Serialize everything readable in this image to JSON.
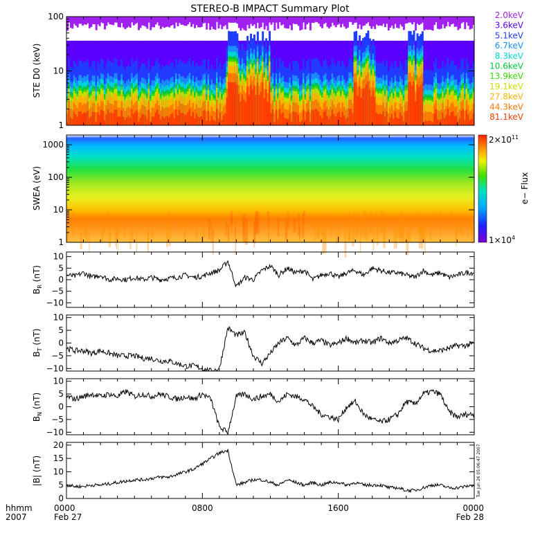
{
  "title": "STEREO-B IMPACT Summary Plot",
  "side_stamp": "Tue Jun 26 05:06:47 2007",
  "x_axis": {
    "row1_label": "hhmm",
    "row2_label": "2007",
    "ticks": [
      {
        "hours": 0,
        "time": "0000",
        "date": "Feb 27"
      },
      {
        "hours": 8,
        "time": "0800",
        "date": ""
      },
      {
        "hours": 16,
        "time": "1600",
        "date": ""
      },
      {
        "hours": 24,
        "time": "0000",
        "date": "Feb 28"
      }
    ],
    "range_hours": [
      0,
      24
    ]
  },
  "colorbar": {
    "label": "e− Flux",
    "max_label_mantissa": "2×10",
    "max_label_exp": "11",
    "min_label_mantissa": "1×10",
    "min_label_exp": "4"
  },
  "chart_data": [
    {
      "type": "area",
      "name": "ste",
      "ylabel": "STE D0 (keV)",
      "yscale": "log",
      "ylim": [
        1,
        100
      ],
      "yticks": [
        {
          "v": 1,
          "label": "1"
        },
        {
          "v": 10,
          "label": "10"
        },
        {
          "v": 100,
          "label": "100"
        }
      ],
      "legend_placement": "right",
      "channels": [
        {
          "name": "2.0keV",
          "color": "#a020f0",
          "level_keV": 100
        },
        {
          "name": "3.6keV",
          "color": "#5a00ff",
          "level_keV": 60
        },
        {
          "name": "5.1keV",
          "color": "#1f3cff",
          "level_keV": 13
        },
        {
          "name": "6.7keV",
          "color": "#1a90ff",
          "level_keV": 7
        },
        {
          "name": "8.3keV",
          "color": "#00d8d8",
          "level_keV": 5.5
        },
        {
          "name": "10.6keV",
          "color": "#00c83c",
          "level_keV": 4.5
        },
        {
          "name": "13.9keV",
          "color": "#3cd800",
          "level_keV": 4.0
        },
        {
          "name": "19.1keV",
          "color": "#c8e000",
          "level_keV": 3.6
        },
        {
          "name": "27.8keV",
          "color": "#ffb400",
          "level_keV": 3.0
        },
        {
          "name": "44.3keV",
          "color": "#ff7800",
          "level_keV": 2.2
        },
        {
          "name": "81.1keV",
          "color": "#ff3c00",
          "level_keV": 1.5
        }
      ]
    },
    {
      "type": "heatmap",
      "name": "swea",
      "ylabel": "SWEA (eV)",
      "yscale": "log",
      "ylim": [
        1,
        2000
      ],
      "yticks": [
        {
          "v": 1,
          "label": "1"
        },
        {
          "v": 10,
          "label": "10"
        },
        {
          "v": 100,
          "label": "100"
        },
        {
          "v": 1000,
          "label": "1000"
        }
      ],
      "zscale": "log",
      "zlim": [
        10000,
        200000000000
      ]
    },
    {
      "type": "line",
      "name": "br",
      "ylabel": "B_R (nT)",
      "ylim": [
        -12,
        12
      ],
      "yticks": [
        {
          "v": 10,
          "label": "10"
        },
        {
          "v": 5,
          "label": "5"
        },
        {
          "v": 0,
          "label": "0"
        },
        {
          "v": -5,
          "label": "−5"
        },
        {
          "v": -10,
          "label": "−10"
        }
      ],
      "x": [
        0,
        0.5,
        1,
        1.5,
        2,
        2.5,
        3,
        3.5,
        4,
        4.5,
        5,
        5.5,
        6,
        6.5,
        7,
        7.5,
        8,
        8.5,
        9,
        9.5,
        10,
        10.5,
        11,
        11.5,
        12,
        12.5,
        13,
        13.5,
        14,
        14.5,
        15,
        15.5,
        16,
        16.5,
        17,
        17.5,
        18,
        18.5,
        19,
        19.5,
        20,
        20.5,
        21,
        21.5,
        22,
        22.5,
        23,
        23.5,
        24
      ],
      "y": [
        2,
        1.5,
        3,
        1,
        2,
        0,
        0.5,
        0,
        1,
        0,
        1,
        0,
        0.5,
        1,
        2,
        1,
        1.5,
        3,
        4,
        8,
        -3,
        1,
        0,
        4,
        6,
        2,
        5,
        3,
        4,
        0,
        2,
        3,
        1,
        3,
        4,
        2,
        5,
        4,
        3,
        3,
        2,
        1,
        4,
        2,
        3,
        1,
        2,
        3,
        3
      ]
    },
    {
      "type": "line",
      "name": "bt",
      "ylabel": "B_T (nT)",
      "ylim": [
        -11,
        11
      ],
      "yticks": [
        {
          "v": 10,
          "label": "10"
        },
        {
          "v": 5,
          "label": "5"
        },
        {
          "v": 0,
          "label": "0"
        },
        {
          "v": -5,
          "label": "−5"
        },
        {
          "v": -10,
          "label": "−10"
        }
      ],
      "x": [
        0,
        0.5,
        1,
        1.5,
        2,
        2.5,
        3,
        3.5,
        4,
        4.5,
        5,
        5.5,
        6,
        6.5,
        7,
        7.5,
        8,
        8.5,
        9,
        9.5,
        10,
        10.5,
        11,
        11.5,
        12,
        12.5,
        13,
        13.5,
        14,
        14.5,
        15,
        15.5,
        16,
        16.5,
        17,
        17.5,
        18,
        18.5,
        19,
        19.5,
        20,
        20.5,
        21,
        21.5,
        22,
        22.5,
        23,
        23.5,
        24
      ],
      "y": [
        -2,
        -3,
        -3,
        -4,
        -3,
        -4,
        -5,
        -5,
        -5,
        -6,
        -6,
        -7,
        -7,
        -8,
        -9,
        -9,
        -10,
        -11,
        -10,
        6,
        3,
        4,
        -5,
        -8,
        -4,
        0,
        2,
        -1,
        2,
        0,
        1,
        -1,
        0,
        2,
        0,
        1,
        0,
        2,
        0,
        1,
        2,
        0,
        -2,
        -3,
        -3,
        -2,
        -1,
        -1,
        0
      ]
    },
    {
      "type": "line",
      "name": "bn",
      "ylabel": "B_N (nT)",
      "ylim": [
        -11,
        11
      ],
      "yticks": [
        {
          "v": 10,
          "label": "10"
        },
        {
          "v": 5,
          "label": "5"
        },
        {
          "v": 0,
          "label": "0"
        },
        {
          "v": -5,
          "label": "−5"
        },
        {
          "v": -10,
          "label": "−10"
        }
      ],
      "x": [
        0,
        0.5,
        1,
        1.5,
        2,
        2.5,
        3,
        3.5,
        4,
        4.5,
        5,
        5.5,
        6,
        6.5,
        7,
        7.5,
        8,
        8.5,
        9,
        9.5,
        10,
        10.5,
        11,
        11.5,
        12,
        12.5,
        13,
        13.5,
        14,
        14.5,
        15,
        15.5,
        16,
        16.5,
        17,
        17.5,
        18,
        18.5,
        19,
        19.5,
        20,
        20.5,
        21,
        21.5,
        22,
        22.5,
        23,
        23.5,
        24
      ],
      "y": [
        4,
        3,
        4,
        5,
        4,
        5,
        4,
        6,
        4,
        5,
        4,
        5,
        4,
        3,
        4,
        3,
        5,
        3,
        -8,
        -10,
        4,
        5,
        3,
        4,
        5,
        2,
        5,
        4,
        3,
        0,
        -3,
        -4,
        -5,
        0,
        2,
        -3,
        -5,
        -6,
        -5,
        -3,
        2,
        1,
        5,
        6,
        5,
        -2,
        -4,
        -3,
        -3
      ]
    },
    {
      "type": "line",
      "name": "bmag",
      "ylabel": "|B| (nT)",
      "ylim": [
        0,
        21
      ],
      "yticks": [
        {
          "v": 20,
          "label": "20"
        },
        {
          "v": 15,
          "label": "15"
        },
        {
          "v": 10,
          "label": "10"
        },
        {
          "v": 5,
          "label": "5"
        },
        {
          "v": 0,
          "label": "0"
        }
      ],
      "x": [
        0,
        0.5,
        1,
        1.5,
        2,
        2.5,
        3,
        3.5,
        4,
        4.5,
        5,
        5.5,
        6,
        6.5,
        7,
        7.5,
        8,
        8.5,
        9,
        9.5,
        10,
        10.5,
        11,
        11.5,
        12,
        12.5,
        13,
        13.5,
        14,
        14.5,
        15,
        15.5,
        16,
        16.5,
        17,
        17.5,
        18,
        18.5,
        19,
        19.5,
        20,
        20.5,
        21,
        21.5,
        22,
        22.5,
        23,
        23.5,
        24
      ],
      "y": [
        5,
        4.5,
        4.5,
        5,
        5,
        5.5,
        6,
        6.5,
        7,
        7,
        7.5,
        8,
        8,
        9,
        10,
        11,
        13,
        15,
        17,
        18,
        5,
        6,
        7,
        7,
        6,
        5,
        7,
        6,
        5,
        6,
        5,
        6,
        6,
        5,
        6,
        5,
        5,
        5,
        4,
        4,
        3,
        3,
        4,
        5,
        5,
        4,
        4,
        4.5,
        5
      ]
    }
  ]
}
